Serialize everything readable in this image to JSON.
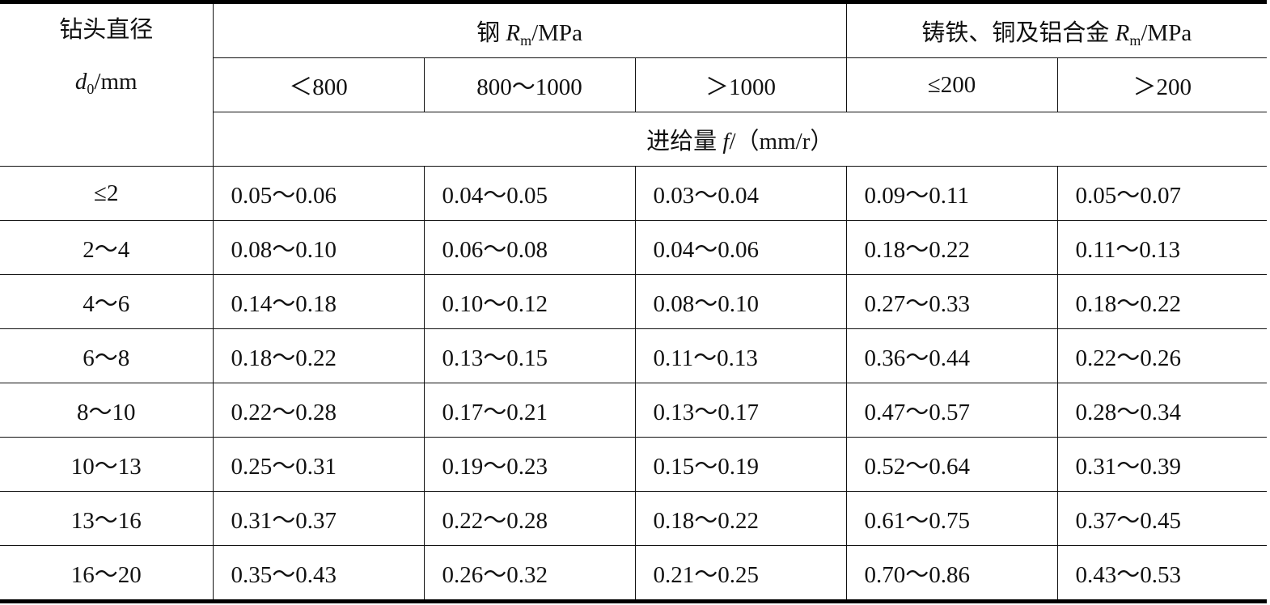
{
  "header": {
    "diameter_line1": "钻头直径",
    "diameter_sym": "d",
    "diameter_sub": "0",
    "diameter_unit": "/mm",
    "steel_prefix": "钢 ",
    "steel_sym": "R",
    "steel_sub": "m",
    "steel_unit": "/MPa",
    "cast_prefix": "铸铁、铜及铝合金 ",
    "cast_sym": "R",
    "cast_sub": "m",
    "cast_unit": "/MPa",
    "strength_ranges": [
      "＜800",
      "800～1000",
      "＞1000",
      "≤200",
      "＞200"
    ],
    "feed_prefix": "进给量 ",
    "feed_sym": "f",
    "feed_unit": "/（mm/r）"
  },
  "rows": [
    {
      "d": "≤2",
      "values": [
        "0.05～0.06",
        "0.04～0.05",
        "0.03～0.04",
        "0.09～0.11",
        "0.05～0.07"
      ]
    },
    {
      "d": "2～4",
      "values": [
        "0.08～0.10",
        "0.06～0.08",
        "0.04～0.06",
        "0.18～0.22",
        "0.11～0.13"
      ]
    },
    {
      "d": "4～6",
      "values": [
        "0.14～0.18",
        "0.10～0.12",
        "0.08～0.10",
        "0.27～0.33",
        "0.18～0.22"
      ]
    },
    {
      "d": "6～8",
      "values": [
        "0.18～0.22",
        "0.13～0.15",
        "0.11～0.13",
        "0.36～0.44",
        "0.22～0.26"
      ]
    },
    {
      "d": "8～10",
      "values": [
        "0.22～0.28",
        "0.17～0.21",
        "0.13～0.17",
        "0.47～0.57",
        "0.28～0.34"
      ]
    },
    {
      "d": "10～13",
      "values": [
        "0.25～0.31",
        "0.19～0.23",
        "0.15～0.19",
        "0.52～0.64",
        "0.31～0.39"
      ]
    },
    {
      "d": "13～16",
      "values": [
        "0.31～0.37",
        "0.22～0.28",
        "0.18～0.22",
        "0.61～0.75",
        "0.37～0.45"
      ]
    },
    {
      "d": "16～20",
      "values": [
        "0.35～0.43",
        "0.26～0.32",
        "0.21～0.25",
        "0.70～0.86",
        "0.43～0.53"
      ]
    }
  ]
}
